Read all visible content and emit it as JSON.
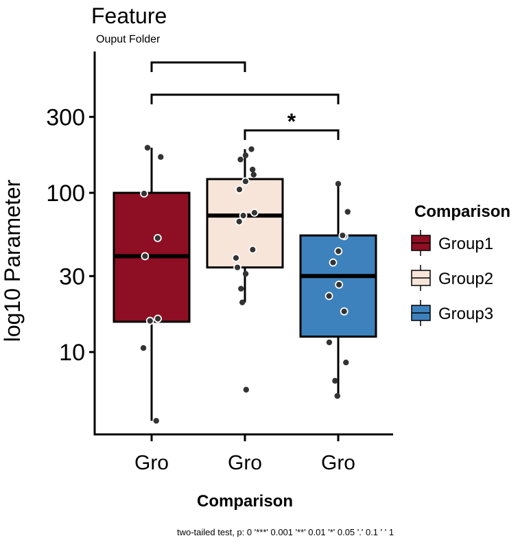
{
  "chart_data": {
    "type": "box",
    "title": "Feature",
    "subtitle": "Ouput Folder",
    "xlabel": "Comparison",
    "ylabel": "log10 Parameter",
    "y_scale": "log10",
    "ylim": [
      3.2,
      800
    ],
    "y_ticks": [
      10,
      30,
      100,
      300
    ],
    "y_tick_labels": [
      "10",
      "30",
      "100",
      "300"
    ],
    "categories": [
      "Gro",
      "Gro",
      "Gro"
    ],
    "legend": {
      "title": "Comparison",
      "placement": "right",
      "entries": [
        "Group1",
        "Group2",
        "Group3"
      ]
    },
    "series": [
      {
        "name": "Group1",
        "color": "#8e0f23",
        "whisker_low": 3.7,
        "q1": 15.5,
        "median": 40,
        "q3": 100,
        "whisker_high": 192,
        "points": [
          3.7,
          10.6,
          15.7,
          16.2,
          40,
          52,
          99,
          168,
          192
        ]
      },
      {
        "name": "Group2",
        "color": "#f8e5da",
        "whisker_low": 20.5,
        "q1": 34,
        "median": 72,
        "q3": 122,
        "whisker_high": 188,
        "points": [
          5.8,
          20.5,
          25,
          31,
          34,
          39,
          44,
          66,
          72,
          75,
          105,
          118,
          130,
          140,
          162,
          172,
          188
        ]
      },
      {
        "name": "Group3",
        "color": "#3e82bd",
        "whisker_low": 5.3,
        "q1": 12.5,
        "median": 30,
        "q3": 54,
        "whisker_high": 114,
        "points": [
          5.3,
          6.6,
          8.6,
          11.5,
          18,
          22.5,
          26.5,
          36.5,
          43,
          53.5,
          54,
          76,
          114
        ]
      }
    ],
    "comparisons": [
      {
        "from": 1,
        "to": 2,
        "label": ""
      },
      {
        "from": 1,
        "to": 3,
        "label": ""
      },
      {
        "from": 2,
        "to": 3,
        "label": "*"
      }
    ],
    "caption": "two-tailed test, p: 0 '***' 0.001 '**' 0.01 '*' 0.05 '.' 0.1 ' ' 1",
    "grid": false
  }
}
